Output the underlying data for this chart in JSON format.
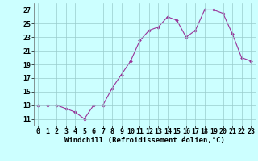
{
  "x": [
    0,
    1,
    2,
    3,
    4,
    5,
    6,
    7,
    8,
    9,
    10,
    11,
    12,
    13,
    14,
    15,
    16,
    17,
    18,
    19,
    20,
    21,
    22,
    23
  ],
  "y": [
    13.0,
    13.0,
    13.0,
    12.5,
    12.0,
    11.0,
    13.0,
    13.0,
    15.5,
    17.5,
    19.5,
    22.5,
    24.0,
    24.5,
    26.0,
    25.5,
    23.0,
    24.0,
    27.0,
    27.0,
    26.5,
    23.5,
    20.0,
    19.5
  ],
  "line_color": "#993399",
  "marker_color": "#993399",
  "bg_color": "#ccffff",
  "grid_color": "#99cccc",
  "xlabel": "Windchill (Refroidissement éolien,°C)",
  "xlabel_fontsize": 6.5,
  "ylim": [
    10,
    28
  ],
  "yticks": [
    11,
    13,
    15,
    17,
    19,
    21,
    23,
    25,
    27
  ],
  "tick_fontsize": 6.0,
  "figsize": [
    3.2,
    2.0
  ],
  "dpi": 100
}
